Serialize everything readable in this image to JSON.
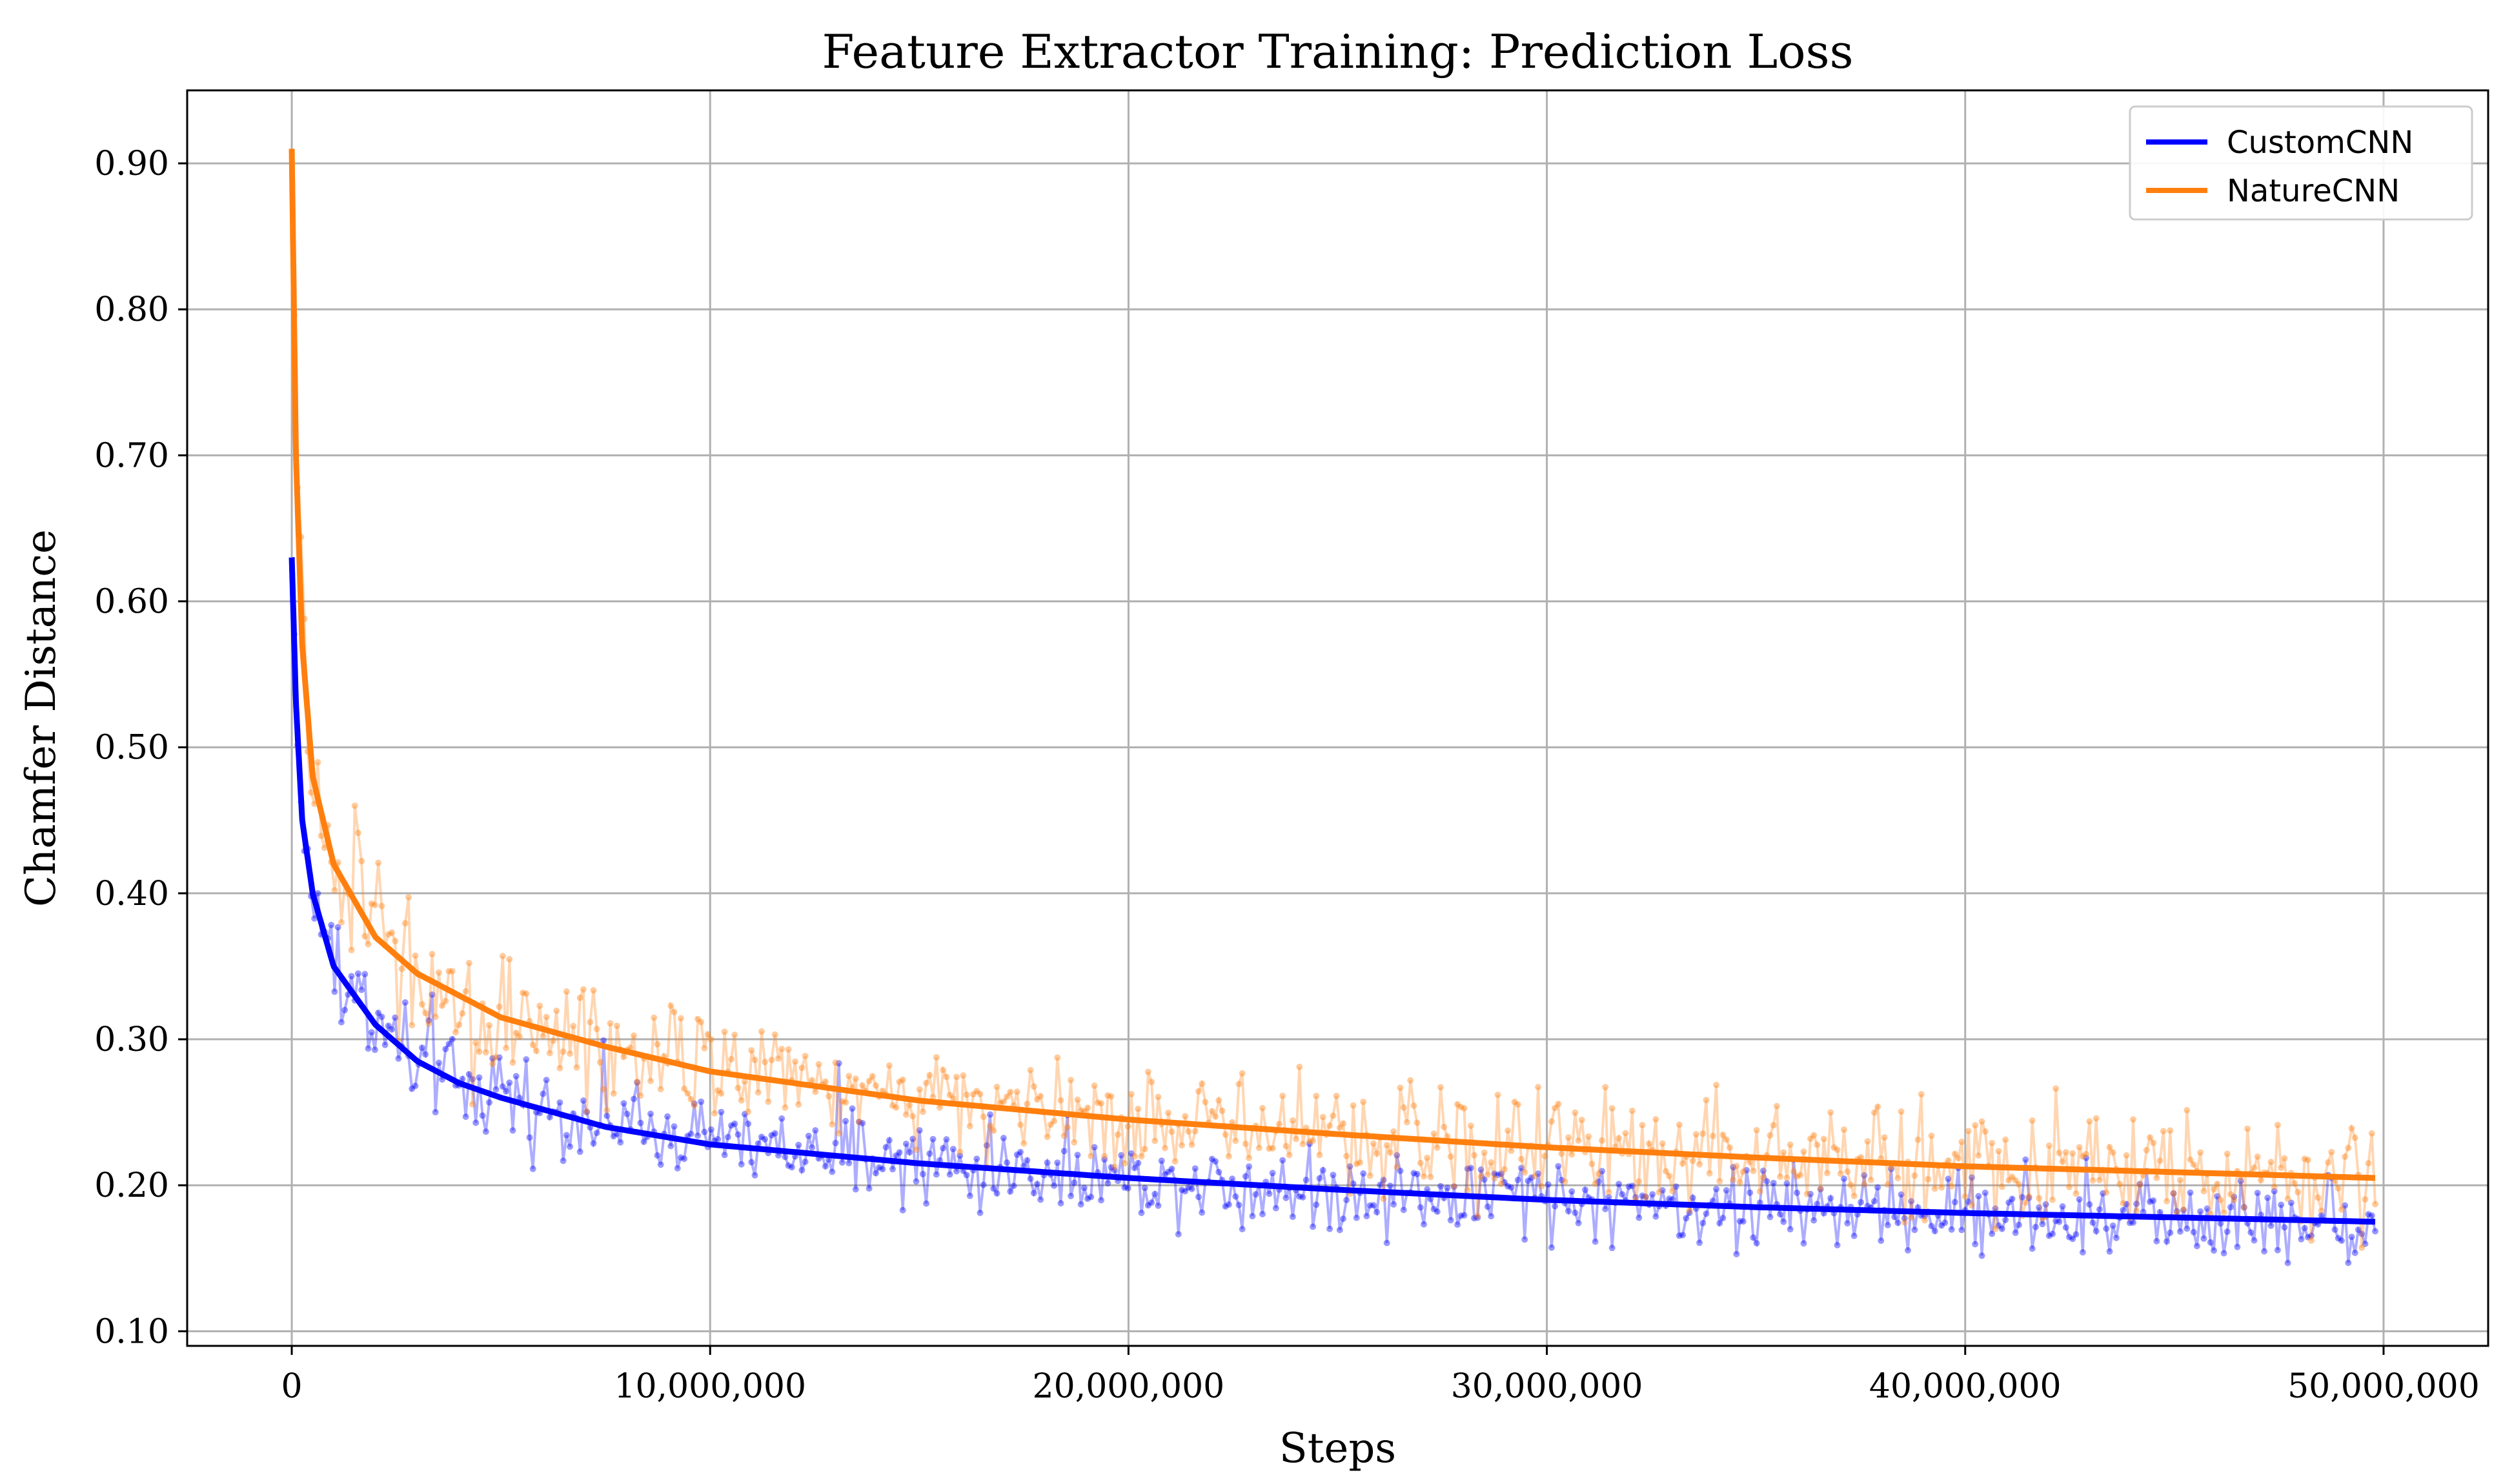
{
  "chart_data": {
    "type": "line",
    "title": "Feature Extractor Training: Prediction Loss",
    "xlabel": "Steps",
    "ylabel": "Chamfer Distance",
    "xlim": [
      -2500000,
      52500000
    ],
    "ylim": [
      0.09,
      0.95
    ],
    "xticks": [
      0,
      10000000,
      20000000,
      30000000,
      40000000,
      50000000
    ],
    "xtick_labels": [
      "0",
      "10,000,000",
      "20,000,000",
      "30,000,000",
      "40,000,000",
      "50,000,000"
    ],
    "yticks": [
      0.1,
      0.2,
      0.3,
      0.4,
      0.5,
      0.6,
      0.7,
      0.8,
      0.9
    ],
    "ytick_labels": [
      "0.10",
      "0.20",
      "0.30",
      "0.40",
      "0.50",
      "0.60",
      "0.70",
      "0.80",
      "0.90"
    ],
    "grid": true,
    "legend_position": "top-right",
    "series": [
      {
        "name": "CustomCNN",
        "color": "#0000ff",
        "fit_start": 0.63,
        "fit_points": [
          [
            0,
            0.63
          ],
          [
            100000,
            0.53
          ],
          [
            250000,
            0.45
          ],
          [
            500000,
            0.4
          ],
          [
            1000000,
            0.35
          ],
          [
            2000000,
            0.31
          ],
          [
            3000000,
            0.285
          ],
          [
            4000000,
            0.27
          ],
          [
            5000000,
            0.26
          ],
          [
            7500000,
            0.24
          ],
          [
            10000000,
            0.228
          ],
          [
            15000000,
            0.215
          ],
          [
            20000000,
            0.205
          ],
          [
            25000000,
            0.197
          ],
          [
            30000000,
            0.19
          ],
          [
            35000000,
            0.185
          ],
          [
            40000000,
            0.181
          ],
          [
            45000000,
            0.178
          ],
          [
            49800000,
            0.175
          ]
        ],
        "noise_amplitude": 0.025,
        "x_end": 49800000
      },
      {
        "name": "NatureCNN",
        "color": "#ff7f0e",
        "fit_start": 0.91,
        "fit_points": [
          [
            0,
            0.91
          ],
          [
            100000,
            0.7
          ],
          [
            250000,
            0.57
          ],
          [
            500000,
            0.48
          ],
          [
            1000000,
            0.42
          ],
          [
            2000000,
            0.37
          ],
          [
            3000000,
            0.345
          ],
          [
            4000000,
            0.33
          ],
          [
            5000000,
            0.315
          ],
          [
            7500000,
            0.295
          ],
          [
            10000000,
            0.278
          ],
          [
            15000000,
            0.258
          ],
          [
            20000000,
            0.245
          ],
          [
            25000000,
            0.235
          ],
          [
            30000000,
            0.226
          ],
          [
            35000000,
            0.219
          ],
          [
            40000000,
            0.213
          ],
          [
            45000000,
            0.209
          ],
          [
            49800000,
            0.205
          ]
        ],
        "noise_amplitude": 0.035,
        "x_end": 49800000
      }
    ]
  }
}
